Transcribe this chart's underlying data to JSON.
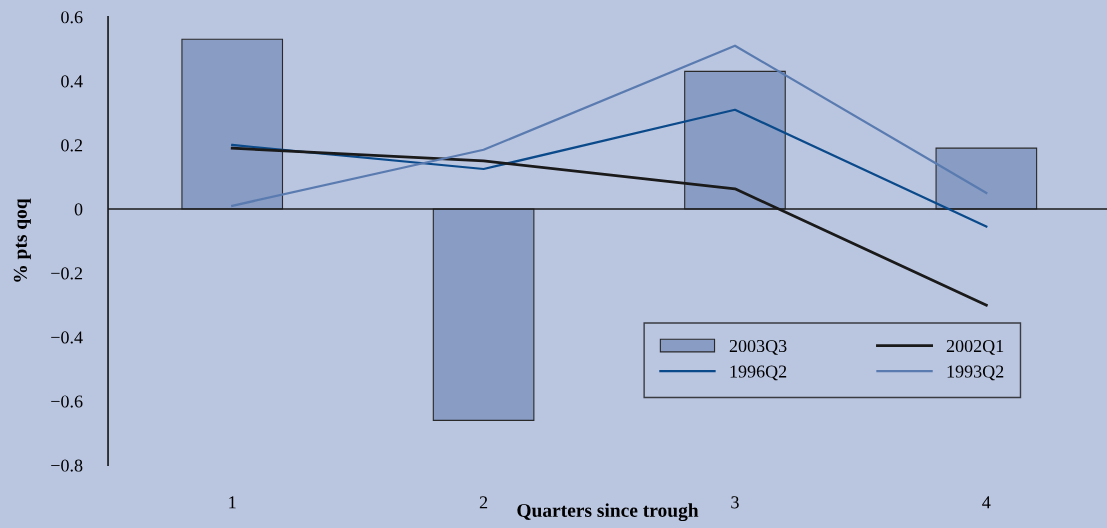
{
  "chart_data": {
    "type": "bar",
    "xlabel": "Quarters since trough",
    "ylabel": "% pts qoq",
    "categories": [
      "1",
      "2",
      "3",
      "4"
    ],
    "series": [
      {
        "name": "2003Q3",
        "color": "#889cc4",
        "values": [
          0.53,
          -0.66,
          0.43,
          0.19
        ]
      },
      {
        "name": "1996Q2",
        "type": "line",
        "color": "#0b4a8a",
        "values": [
          0.2,
          0.125,
          0.31,
          -0.055
        ]
      },
      {
        "name": "2002Q1",
        "type": "line",
        "color": "#1a1a1a",
        "values": [
          0.19,
          0.15,
          0.063,
          -0.3
        ]
      },
      {
        "name": "1993Q2",
        "type": "line",
        "color": "#5a7bb0",
        "values": [
          0.01,
          0.185,
          0.51,
          0.05
        ]
      }
    ],
    "ylim": [
      -0.8,
      0.6
    ],
    "yticks": [
      {
        "value": -0.8,
        "label": "−0.8"
      },
      {
        "value": -0.6,
        "label": "−0.6"
      },
      {
        "value": -0.4,
        "label": "−0.4"
      },
      {
        "value": -0.2,
        "label": "−0.2"
      },
      0,
      0.2,
      0.4,
      0.6
    ],
    "ref_lines": [
      {
        "axis": "y",
        "value": 0,
        "color": "#1a1a1a"
      }
    ],
    "legend": "bottom right",
    "grid": false
  }
}
